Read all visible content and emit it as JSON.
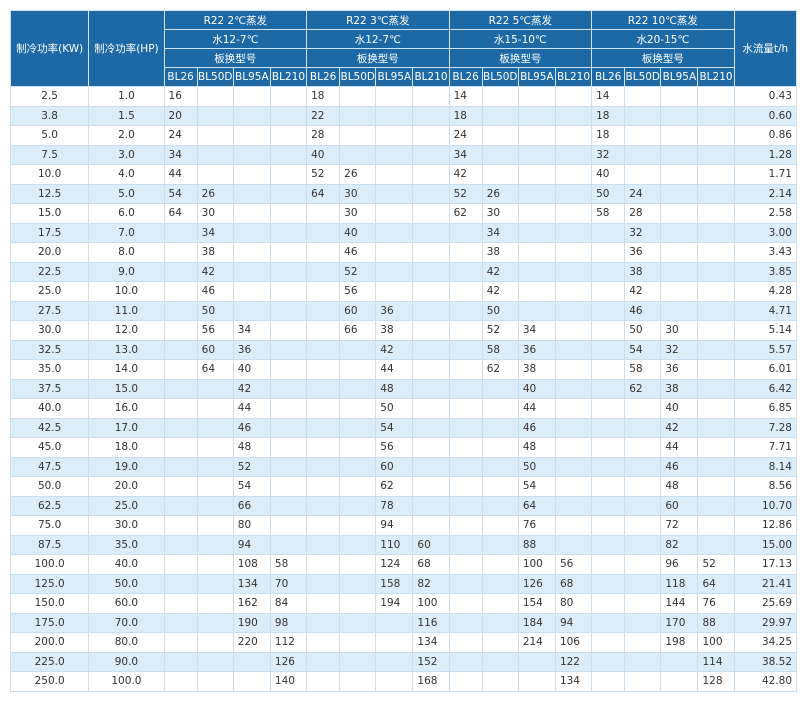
{
  "table": {
    "headers": {
      "kw": "制冷功率(KW)",
      "hp": "制冷功率(HP)",
      "flow": "水流量t/h",
      "groups": [
        {
          "title": "R22 2℃蒸发",
          "water": "水12-7℃",
          "model": "板换型号"
        },
        {
          "title": "R22 3℃蒸发",
          "water": "水12-7℃",
          "model": "板换型号"
        },
        {
          "title": "R22 5℃蒸发",
          "water": "水15-10℃",
          "model": "板换型号"
        },
        {
          "title": "R22 10℃蒸发",
          "water": "水20-15℃",
          "model": "板换型号"
        }
      ],
      "models": [
        "BL26",
        "BL50D",
        "BL95A",
        "BL210",
        "BL26",
        "BL50D",
        "BL95A",
        "BL210",
        "BL26",
        "BL50D",
        "BL95A",
        "BL210",
        "BL26",
        "BL50D",
        "BL95A",
        "BL210"
      ]
    },
    "rows": [
      [
        "2.5",
        "1.0",
        "16",
        null,
        null,
        null,
        "18",
        null,
        null,
        null,
        "14",
        null,
        null,
        null,
        "14",
        null,
        null,
        null,
        "0.43"
      ],
      [
        "3.8",
        "1.5",
        "20",
        null,
        null,
        null,
        "22",
        null,
        null,
        null,
        "18",
        null,
        null,
        null,
        "18",
        null,
        null,
        null,
        "0.60"
      ],
      [
        "5.0",
        "2.0",
        "24",
        null,
        null,
        null,
        "28",
        null,
        null,
        null,
        "24",
        null,
        null,
        null,
        "18",
        null,
        null,
        null,
        "0.86"
      ],
      [
        "7.5",
        "3.0",
        "34",
        null,
        null,
        null,
        "40",
        null,
        null,
        null,
        "34",
        null,
        null,
        null,
        "32",
        null,
        null,
        null,
        "1.28"
      ],
      [
        "10.0",
        "4.0",
        "44",
        null,
        null,
        null,
        "52",
        "26",
        null,
        null,
        "42",
        null,
        null,
        null,
        "40",
        null,
        null,
        null,
        "1.71"
      ],
      [
        "12.5",
        "5.0",
        "54",
        "26",
        null,
        null,
        "64",
        "30",
        null,
        null,
        "52",
        "26",
        null,
        null,
        "50",
        "24",
        null,
        null,
        "2.14"
      ],
      [
        "15.0",
        "6.0",
        "64",
        "30",
        null,
        null,
        null,
        "30",
        null,
        null,
        "62",
        "30",
        null,
        null,
        "58",
        "28",
        null,
        null,
        "2.58"
      ],
      [
        "17.5",
        "7.0",
        null,
        "34",
        null,
        null,
        null,
        "40",
        null,
        null,
        null,
        "34",
        null,
        null,
        null,
        "32",
        null,
        null,
        "3.00"
      ],
      [
        "20.0",
        "8.0",
        null,
        "38",
        null,
        null,
        null,
        "46",
        null,
        null,
        null,
        "38",
        null,
        null,
        null,
        "36",
        null,
        null,
        "3.43"
      ],
      [
        "22.5",
        "9.0",
        null,
        "42",
        null,
        null,
        null,
        "52",
        null,
        null,
        null,
        "42",
        null,
        null,
        null,
        "38",
        null,
        null,
        "3.85"
      ],
      [
        "25.0",
        "10.0",
        null,
        "46",
        null,
        null,
        null,
        "56",
        null,
        null,
        null,
        "42",
        null,
        null,
        null,
        "42",
        null,
        null,
        "4.28"
      ],
      [
        "27.5",
        "11.0",
        null,
        "50",
        null,
        null,
        null,
        "60",
        "36",
        null,
        null,
        "50",
        null,
        null,
        null,
        "46",
        null,
        null,
        "4.71"
      ],
      [
        "30.0",
        "12.0",
        null,
        "56",
        "34",
        null,
        null,
        "66",
        "38",
        null,
        null,
        "52",
        "34",
        null,
        null,
        "50",
        "30",
        null,
        "5.14"
      ],
      [
        "32.5",
        "13.0",
        null,
        "60",
        "36",
        null,
        null,
        null,
        "42",
        null,
        null,
        "58",
        "36",
        null,
        null,
        "54",
        "32",
        null,
        "5.57"
      ],
      [
        "35.0",
        "14.0",
        null,
        "64",
        "40",
        null,
        null,
        null,
        "44",
        null,
        null,
        "62",
        "38",
        null,
        null,
        "58",
        "36",
        null,
        "6.01"
      ],
      [
        "37.5",
        "15.0",
        null,
        null,
        "42",
        null,
        null,
        null,
        "48",
        null,
        null,
        null,
        "40",
        null,
        null,
        "62",
        "38",
        null,
        "6.42"
      ],
      [
        "40.0",
        "16.0",
        null,
        null,
        "44",
        null,
        null,
        null,
        "50",
        null,
        null,
        null,
        "44",
        null,
        null,
        null,
        "40",
        null,
        "6.85"
      ],
      [
        "42.5",
        "17.0",
        null,
        null,
        "46",
        null,
        null,
        null,
        "54",
        null,
        null,
        null,
        "46",
        null,
        null,
        null,
        "42",
        null,
        "7.28"
      ],
      [
        "45.0",
        "18.0",
        null,
        null,
        "48",
        null,
        null,
        null,
        "56",
        null,
        null,
        null,
        "48",
        null,
        null,
        null,
        "44",
        null,
        "7.71"
      ],
      [
        "47.5",
        "19.0",
        null,
        null,
        "52",
        null,
        null,
        null,
        "60",
        null,
        null,
        null,
        "50",
        null,
        null,
        null,
        "46",
        null,
        "8.14"
      ],
      [
        "50.0",
        "20.0",
        null,
        null,
        "54",
        null,
        null,
        null,
        "62",
        null,
        null,
        null,
        "54",
        null,
        null,
        null,
        "48",
        null,
        "8.56"
      ],
      [
        "62.5",
        "25.0",
        null,
        null,
        "66",
        null,
        null,
        null,
        "78",
        null,
        null,
        null,
        "64",
        null,
        null,
        null,
        "60",
        null,
        "10.70"
      ],
      [
        "75.0",
        "30.0",
        null,
        null,
        "80",
        null,
        null,
        null,
        "94",
        null,
        null,
        null,
        "76",
        null,
        null,
        null,
        "72",
        null,
        "12.86"
      ],
      [
        "87.5",
        "35.0",
        null,
        null,
        "94",
        null,
        null,
        null,
        "110",
        "60",
        null,
        null,
        "88",
        null,
        null,
        null,
        "82",
        null,
        "15.00"
      ],
      [
        "100.0",
        "40.0",
        null,
        null,
        "108",
        "58",
        null,
        null,
        "124",
        "68",
        null,
        null,
        "100",
        "56",
        null,
        null,
        "96",
        "52",
        "17.13"
      ],
      [
        "125.0",
        "50.0",
        null,
        null,
        "134",
        "70",
        null,
        null,
        "158",
        "82",
        null,
        null,
        "126",
        "68",
        null,
        null,
        "118",
        "64",
        "21.41"
      ],
      [
        "150.0",
        "60.0",
        null,
        null,
        "162",
        "84",
        null,
        null,
        "194",
        "100",
        null,
        null,
        "154",
        "80",
        null,
        null,
        "144",
        "76",
        "25.69"
      ],
      [
        "175.0",
        "70.0",
        null,
        null,
        "190",
        "98",
        null,
        null,
        null,
        "116",
        null,
        null,
        "184",
        "94",
        null,
        null,
        "170",
        "88",
        "29.97"
      ],
      [
        "200.0",
        "80.0",
        null,
        null,
        "220",
        "112",
        null,
        null,
        null,
        "134",
        null,
        null,
        "214",
        "106",
        null,
        null,
        "198",
        "100",
        "34.25"
      ],
      [
        "225.0",
        "90.0",
        null,
        null,
        null,
        "126",
        null,
        null,
        null,
        "152",
        null,
        null,
        null,
        "122",
        null,
        null,
        null,
        "114",
        "38.52"
      ],
      [
        "250.0",
        "100.0",
        null,
        null,
        null,
        "140",
        null,
        null,
        null,
        "168",
        null,
        null,
        null,
        "134",
        null,
        null,
        null,
        "128",
        "42.80"
      ]
    ]
  }
}
